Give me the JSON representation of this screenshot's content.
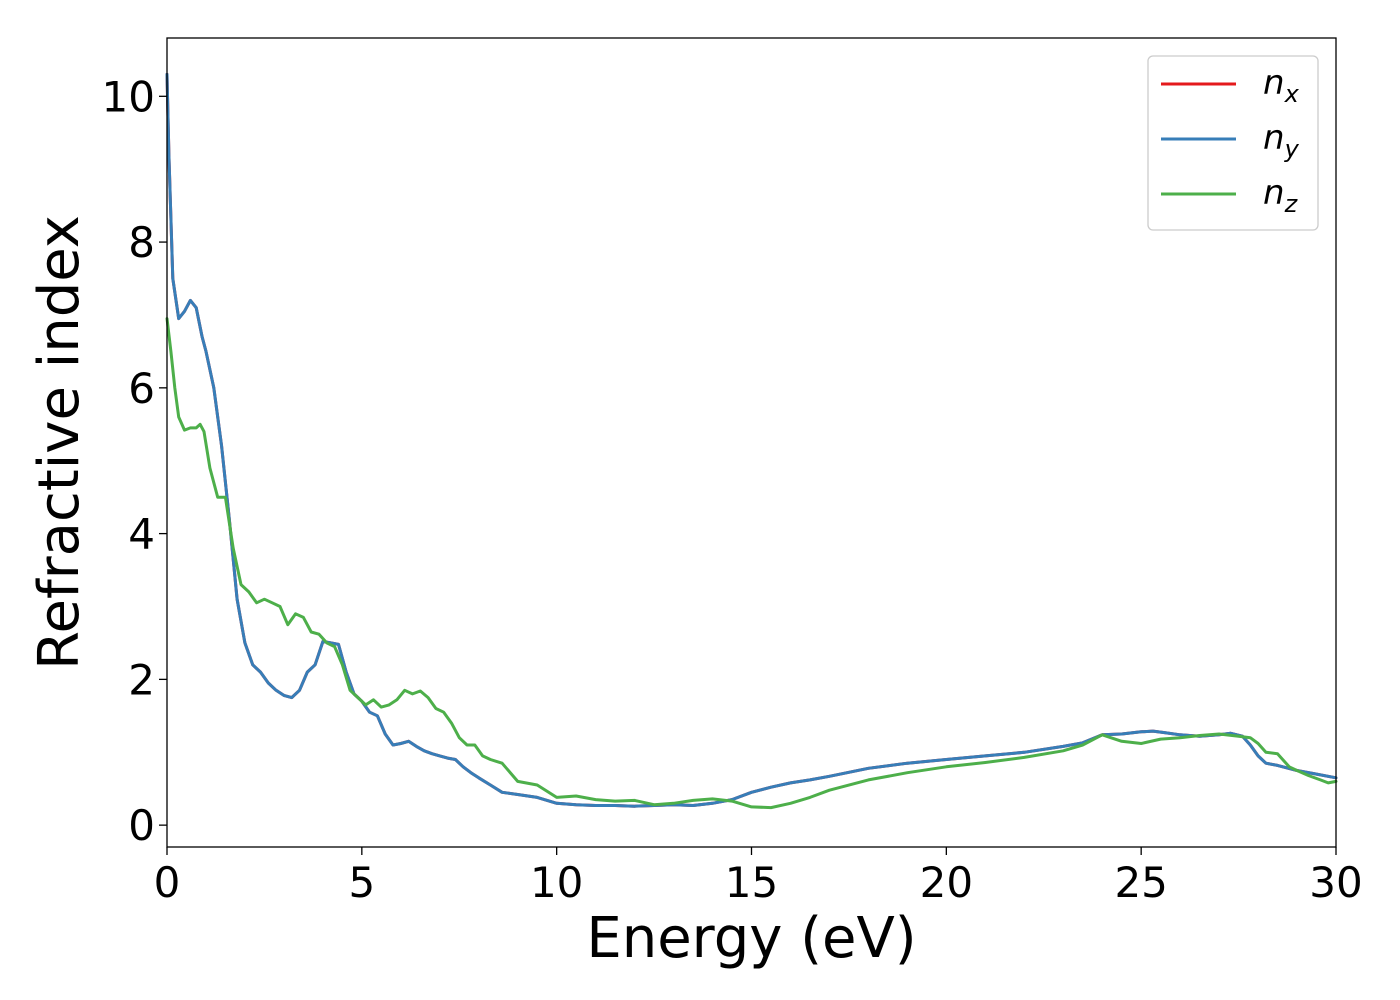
{
  "chart_data": {
    "type": "line",
    "xlabel": "Energy (eV)",
    "ylabel": "Refractive index",
    "xlim": [
      0,
      30
    ],
    "ylim": [
      -0.3,
      10.8
    ],
    "xticks": [
      "0",
      "5",
      "10",
      "15",
      "20",
      "25",
      "30"
    ],
    "yticks": [
      "0",
      "2",
      "4",
      "6",
      "8",
      "10"
    ],
    "grid": false,
    "legend_position": "top-right",
    "series": [
      {
        "name": "n_x",
        "label_base": "n",
        "label_sub": "x",
        "color": "#e41a1c",
        "x": [
          0,
          0.05,
          0.15,
          0.3,
          0.45,
          0.6,
          0.75,
          0.9,
          1.0,
          1.2,
          1.4,
          1.6,
          1.8,
          2.0,
          2.2,
          2.4,
          2.6,
          2.8,
          3.0,
          3.2,
          3.4,
          3.6,
          3.8,
          4.0,
          4.2,
          4.4,
          4.6,
          4.8,
          5.0,
          5.2,
          5.4,
          5.6,
          5.8,
          6.0,
          6.2,
          6.4,
          6.6,
          6.8,
          7.0,
          7.2,
          7.4,
          7.6,
          7.8,
          8.0,
          8.3,
          8.6,
          9.0,
          9.5,
          10.0,
          10.5,
          11.0,
          11.5,
          12.0,
          12.5,
          13.0,
          13.5,
          14.0,
          14.5,
          15.0,
          15.5,
          16.0,
          16.5,
          17.0,
          18.0,
          19.0,
          20.0,
          21.0,
          22.0,
          23.0,
          23.5,
          24.0,
          24.5,
          25.0,
          25.3,
          25.6,
          26.0,
          26.5,
          27.0,
          27.3,
          27.6,
          27.8,
          28.0,
          28.2,
          28.5,
          29.0,
          29.5,
          30.0
        ],
        "y": [
          10.3,
          9.2,
          7.5,
          6.95,
          7.05,
          7.2,
          7.1,
          6.7,
          6.5,
          6.0,
          5.2,
          4.2,
          3.1,
          2.5,
          2.2,
          2.1,
          1.95,
          1.85,
          1.78,
          1.75,
          1.85,
          2.1,
          2.2,
          2.52,
          2.5,
          2.48,
          2.1,
          1.8,
          1.7,
          1.55,
          1.5,
          1.25,
          1.1,
          1.12,
          1.15,
          1.08,
          1.02,
          0.98,
          0.95,
          0.92,
          0.9,
          0.8,
          0.72,
          0.65,
          0.55,
          0.45,
          0.42,
          0.38,
          0.3,
          0.28,
          0.27,
          0.27,
          0.26,
          0.27,
          0.28,
          0.27,
          0.3,
          0.35,
          0.45,
          0.52,
          0.58,
          0.62,
          0.67,
          0.78,
          0.85,
          0.9,
          0.95,
          1.0,
          1.08,
          1.13,
          1.24,
          1.25,
          1.28,
          1.29,
          1.27,
          1.24,
          1.22,
          1.24,
          1.26,
          1.22,
          1.1,
          0.95,
          0.85,
          0.82,
          0.75,
          0.7,
          0.65
        ]
      },
      {
        "name": "n_y",
        "label_base": "n",
        "label_sub": "y",
        "color": "#377eb8",
        "x": [
          0,
          0.05,
          0.15,
          0.3,
          0.45,
          0.6,
          0.75,
          0.9,
          1.0,
          1.2,
          1.4,
          1.6,
          1.8,
          2.0,
          2.2,
          2.4,
          2.6,
          2.8,
          3.0,
          3.2,
          3.4,
          3.6,
          3.8,
          4.0,
          4.2,
          4.4,
          4.6,
          4.8,
          5.0,
          5.2,
          5.4,
          5.6,
          5.8,
          6.0,
          6.2,
          6.4,
          6.6,
          6.8,
          7.0,
          7.2,
          7.4,
          7.6,
          7.8,
          8.0,
          8.3,
          8.6,
          9.0,
          9.5,
          10.0,
          10.5,
          11.0,
          11.5,
          12.0,
          12.5,
          13.0,
          13.5,
          14.0,
          14.5,
          15.0,
          15.5,
          16.0,
          16.5,
          17.0,
          18.0,
          19.0,
          20.0,
          21.0,
          22.0,
          23.0,
          23.5,
          24.0,
          24.5,
          25.0,
          25.3,
          25.6,
          26.0,
          26.5,
          27.0,
          27.3,
          27.6,
          27.8,
          28.0,
          28.2,
          28.5,
          29.0,
          29.5,
          30.0
        ],
        "y": [
          10.3,
          9.2,
          7.5,
          6.95,
          7.05,
          7.2,
          7.1,
          6.7,
          6.5,
          6.0,
          5.2,
          4.2,
          3.1,
          2.5,
          2.2,
          2.1,
          1.95,
          1.85,
          1.78,
          1.75,
          1.85,
          2.1,
          2.2,
          2.52,
          2.5,
          2.48,
          2.1,
          1.8,
          1.7,
          1.55,
          1.5,
          1.25,
          1.1,
          1.12,
          1.15,
          1.08,
          1.02,
          0.98,
          0.95,
          0.92,
          0.9,
          0.8,
          0.72,
          0.65,
          0.55,
          0.45,
          0.42,
          0.38,
          0.3,
          0.28,
          0.27,
          0.27,
          0.26,
          0.27,
          0.28,
          0.27,
          0.3,
          0.35,
          0.45,
          0.52,
          0.58,
          0.62,
          0.67,
          0.78,
          0.85,
          0.9,
          0.95,
          1.0,
          1.08,
          1.13,
          1.24,
          1.25,
          1.28,
          1.29,
          1.27,
          1.24,
          1.22,
          1.24,
          1.26,
          1.22,
          1.1,
          0.95,
          0.85,
          0.82,
          0.75,
          0.7,
          0.65
        ]
      },
      {
        "name": "n_z",
        "label_base": "n",
        "label_sub": "z",
        "color": "#4daf4a",
        "x": [
          0,
          0.1,
          0.2,
          0.3,
          0.45,
          0.6,
          0.75,
          0.85,
          0.95,
          1.1,
          1.3,
          1.5,
          1.7,
          1.9,
          2.1,
          2.3,
          2.5,
          2.7,
          2.9,
          3.1,
          3.3,
          3.5,
          3.7,
          3.9,
          4.1,
          4.3,
          4.5,
          4.7,
          4.9,
          5.1,
          5.3,
          5.5,
          5.7,
          5.9,
          6.1,
          6.3,
          6.5,
          6.7,
          6.9,
          7.1,
          7.3,
          7.5,
          7.7,
          7.9,
          8.1,
          8.3,
          8.6,
          9.0,
          9.5,
          10.0,
          10.5,
          11.0,
          11.5,
          12.0,
          12.5,
          13.0,
          13.5,
          14.0,
          14.5,
          15.0,
          15.5,
          16.0,
          16.5,
          17.0,
          18.0,
          19.0,
          20.0,
          21.0,
          22.0,
          23.0,
          23.5,
          24.0,
          24.5,
          25.0,
          25.5,
          26.0,
          26.5,
          27.0,
          27.5,
          27.8,
          28.0,
          28.2,
          28.5,
          28.8,
          29.0,
          29.3,
          29.6,
          29.8,
          30.0
        ],
        "y": [
          6.95,
          6.5,
          6.0,
          5.6,
          5.42,
          5.45,
          5.45,
          5.5,
          5.4,
          4.9,
          4.5,
          4.5,
          3.8,
          3.3,
          3.2,
          3.05,
          3.1,
          3.05,
          3.0,
          2.75,
          2.9,
          2.85,
          2.65,
          2.62,
          2.5,
          2.45,
          2.2,
          1.85,
          1.75,
          1.65,
          1.72,
          1.62,
          1.65,
          1.72,
          1.85,
          1.8,
          1.84,
          1.75,
          1.6,
          1.55,
          1.4,
          1.2,
          1.1,
          1.1,
          0.95,
          0.9,
          0.85,
          0.6,
          0.55,
          0.38,
          0.4,
          0.35,
          0.33,
          0.34,
          0.28,
          0.3,
          0.34,
          0.36,
          0.33,
          0.25,
          0.24,
          0.3,
          0.38,
          0.48,
          0.62,
          0.72,
          0.8,
          0.86,
          0.93,
          1.02,
          1.1,
          1.24,
          1.15,
          1.12,
          1.18,
          1.2,
          1.23,
          1.25,
          1.22,
          1.2,
          1.12,
          1.0,
          0.98,
          0.8,
          0.75,
          0.68,
          0.62,
          0.58,
          0.6
        ]
      }
    ]
  }
}
